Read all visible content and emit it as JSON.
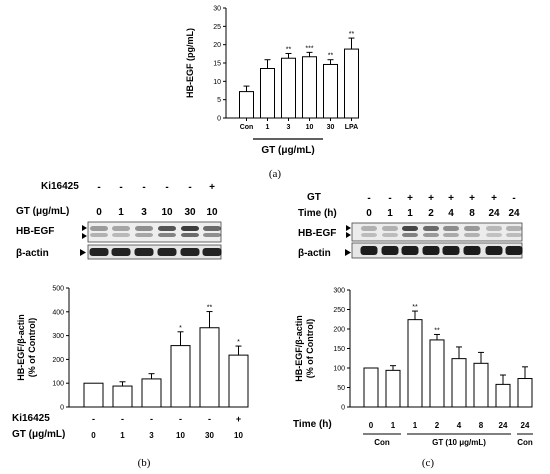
{
  "panel_a": {
    "caption": "(a)",
    "group_label": "GT (μg/mL)"
  },
  "panel_b": {
    "caption": "(b)",
    "blot": {
      "row1_label": "Ki16425",
      "row2_label": "GT (μg/mL)",
      "row1_values": [
        "-",
        "-",
        "-",
        "-",
        "-",
        "+"
      ],
      "row2_values": [
        "0",
        "1",
        "3",
        "10",
        "30",
        "10"
      ],
      "band1_label": "HB-EGF",
      "band2_label": "β-actin"
    },
    "bottom": {
      "row1_label": "Ki16425",
      "row2_label": "GT (μg/mL)",
      "row1_values": [
        "-",
        "-",
        "-",
        "-",
        "-",
        "+"
      ],
      "row2_values": [
        "0",
        "1",
        "3",
        "10",
        "30",
        "10"
      ]
    }
  },
  "panel_c": {
    "caption": "(c)",
    "blot": {
      "row1_label": "GT",
      "row2_label": "Time (h)",
      "row1_values": [
        "-",
        "-",
        "+",
        "+",
        "+",
        "+",
        "+",
        "-"
      ],
      "row2_values": [
        "0",
        "1",
        "1",
        "2",
        "4",
        "8",
        "24",
        "24"
      ],
      "band1_label": "HB-EGF",
      "band2_label": "β-actin"
    },
    "bottom": {
      "row_label": "Time (h)",
      "row_values": [
        "0",
        "1",
        "1",
        "2",
        "4",
        "8",
        "24",
        "24"
      ],
      "groups": [
        "Con",
        "GT (10 μg/mL)",
        "Con"
      ]
    }
  },
  "chart_data": [
    {
      "type": "bar",
      "panel": "a",
      "categories": [
        "Con",
        "1",
        "3",
        "10",
        "30",
        "LPA"
      ],
      "values": [
        7.2,
        13.5,
        16.3,
        16.7,
        14.6,
        18.8
      ],
      "errors": [
        1.5,
        2.4,
        1.3,
        1.2,
        1.3,
        3.0
      ],
      "significance": [
        "",
        "",
        "**",
        "***",
        "**",
        "**"
      ],
      "ylabel": "HB-EGF (pg/mL)",
      "ylim": [
        0,
        30
      ],
      "yticks": [
        "0",
        "5",
        "10",
        "15",
        "20",
        "25",
        "30"
      ],
      "bar_color": "#ffffff"
    },
    {
      "type": "bar",
      "panel": "b",
      "categories": [
        "0",
        "1",
        "3",
        "10",
        "30",
        "10"
      ],
      "values": [
        100,
        88,
        118,
        258,
        333,
        218
      ],
      "errors": [
        0,
        18,
        22,
        58,
        68,
        38
      ],
      "significance": [
        "",
        "",
        "",
        "*",
        "**",
        "*"
      ],
      "ylabel": "HB-EGF/β-actin (% of Control)",
      "ylim": [
        0,
        500
      ],
      "yticks": [
        "0",
        "100",
        "200",
        "300",
        "400",
        "500"
      ],
      "bar_color": "#ffffff"
    },
    {
      "type": "bar",
      "panel": "c",
      "categories": [
        "0",
        "1",
        "1",
        "2",
        "4",
        "8",
        "24",
        "24"
      ],
      "values": [
        100,
        94,
        224,
        172,
        124,
        112,
        58,
        73
      ],
      "errors": [
        0,
        12,
        22,
        14,
        30,
        28,
        24,
        30
      ],
      "significance": [
        "",
        "",
        "**",
        "**",
        "",
        "",
        "",
        ""
      ],
      "ylabel": "HB-EGF/β-actin (% of Control)",
      "ylim": [
        0,
        300
      ],
      "yticks": [
        "0",
        "50",
        "100",
        "150",
        "200",
        "250",
        "300"
      ],
      "bar_color": "#ffffff"
    }
  ]
}
